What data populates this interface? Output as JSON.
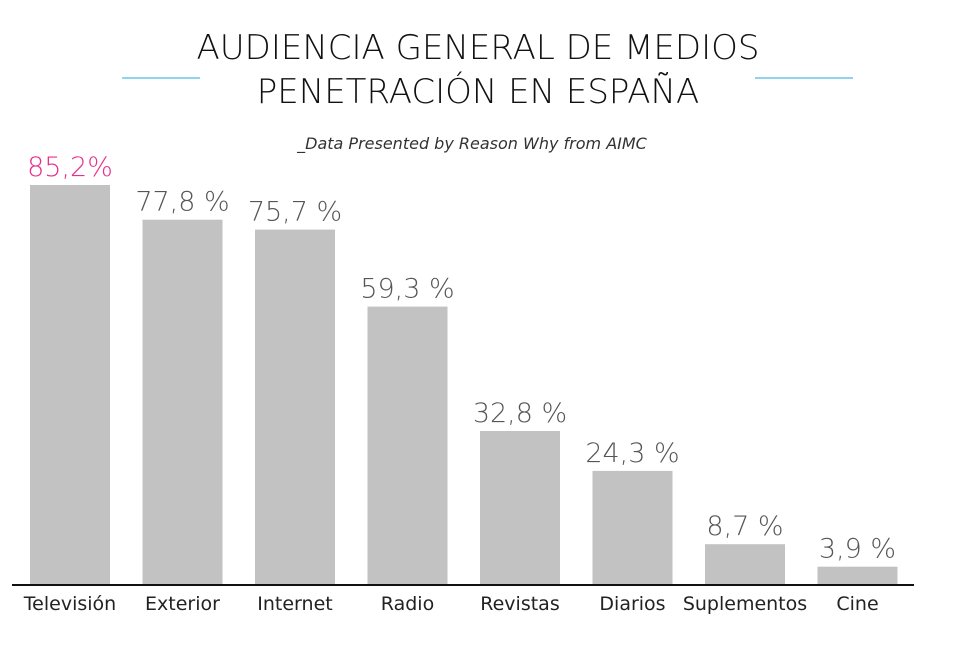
{
  "chart_data": {
    "type": "bar",
    "title_line1": "AUDIENCIA GENERAL DE MEDIOS",
    "title_line2": "PENETRACIÓN EN ESPAÑA",
    "subtitle": "_Data Presented by Reason Why from AIMC",
    "categories": [
      "Televisión",
      "Exterior",
      "Internet",
      "Radio",
      "Revistas",
      "Diarios",
      "Suplementos",
      "Cine"
    ],
    "values": [
      85.2,
      77.8,
      75.7,
      59.3,
      32.8,
      24.3,
      8.7,
      3.9
    ],
    "value_labels": [
      "85,2%",
      "77,8 %",
      "75,7 %",
      "59,3 %",
      "32,8 %",
      "24,3 %",
      "8,7 %",
      "3,9 %"
    ],
    "highlight_index": 0,
    "xlabel": "",
    "ylabel": "",
    "ylim": [
      0,
      85.2
    ],
    "grid": false,
    "colors": {
      "bar": "#c2c2c2",
      "highlight_label": "#e8308a",
      "label": "#555555",
      "axis": "#111111",
      "title_rule": "#8fd3ef"
    }
  }
}
